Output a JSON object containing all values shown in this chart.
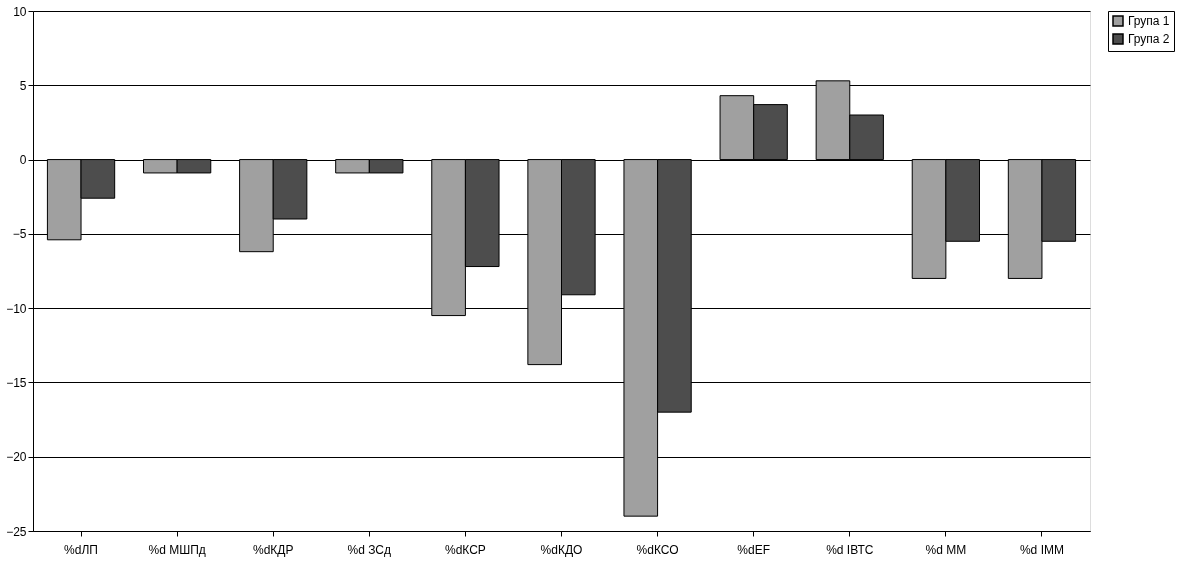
{
  "chart_data": {
    "type": "bar",
    "categories": [
      "%dЛП",
      "%d МШПд",
      "%dКДР",
      "%d ЗСд",
      "%dКСР",
      "%dКДО",
      "%dКСО",
      "%dEF",
      "%d ІВТС",
      "%d ММ",
      "%d ІММ"
    ],
    "series": [
      {
        "name": "Група 1",
        "color": "#a0a0a0",
        "values": [
          -5.4,
          -0.9,
          -6.2,
          -0.9,
          -10.5,
          -13.8,
          -24.0,
          4.3,
          5.3,
          -8.0,
          -8.0
        ]
      },
      {
        "name": "Група 2",
        "color": "#4d4d4d",
        "values": [
          -2.6,
          -0.9,
          -4.0,
          -0.9,
          -7.2,
          -9.1,
          -17.0,
          3.7,
          3.0,
          -5.5,
          -5.5
        ]
      }
    ],
    "ylim": [
      -25,
      10
    ],
    "yticks": [
      -25,
      -20,
      -15,
      -10,
      -5,
      0,
      5,
      10
    ],
    "grid": "y",
    "legend": "right"
  }
}
